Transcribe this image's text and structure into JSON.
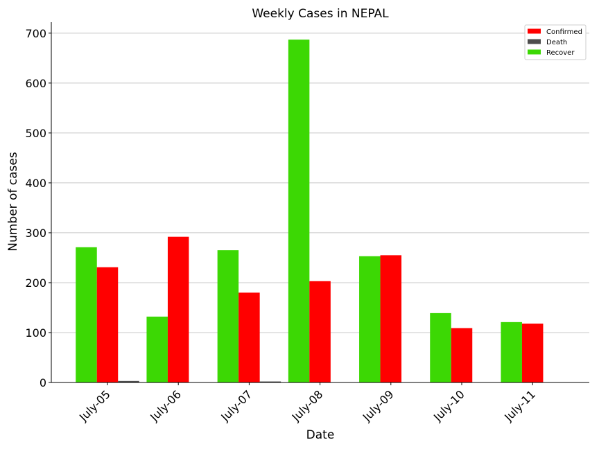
{
  "chart_data": {
    "type": "bar",
    "title": "Weekly Cases in NEPAL",
    "xlabel": "Date",
    "ylabel": "Number of cases",
    "categories": [
      "July-05",
      "July-06",
      "July-07",
      "July-08",
      "July-09",
      "July-10",
      "July-11"
    ],
    "series": [
      {
        "name": "Recover",
        "color": "#3cd804",
        "values": [
          271,
          132,
          265,
          687,
          253,
          139,
          121
        ]
      },
      {
        "name": "Confirmed",
        "color": "#ff0000",
        "values": [
          231,
          292,
          180,
          203,
          255,
          109,
          118
        ]
      },
      {
        "name": "Death",
        "color": "#4d4d4d",
        "values": [
          3,
          0,
          2,
          0,
          0,
          0,
          0
        ]
      }
    ],
    "legend_order": [
      "Confirmed",
      "Death",
      "Recover"
    ],
    "ylim": [
      0,
      722
    ],
    "yticks": [
      0,
      100,
      200,
      300,
      400,
      500,
      600,
      700
    ],
    "grid": "horizontal",
    "legend_position": "top-right"
  }
}
